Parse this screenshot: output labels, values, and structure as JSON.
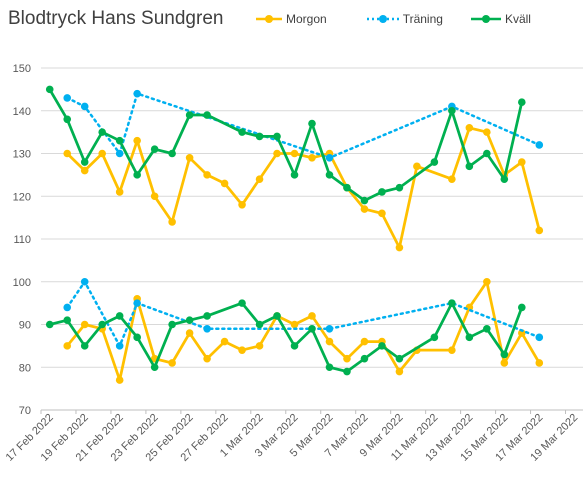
{
  "chart_data": {
    "type": "line",
    "title": "Blodtryck Hans Sundgren",
    "xlabel": "",
    "ylabel": "",
    "ylim": [
      70,
      150
    ],
    "yticks": [
      "70",
      "80",
      "90",
      "100",
      "110",
      "120",
      "130",
      "140",
      "150"
    ],
    "xticks": [
      "17 Feb 2022",
      "19 Feb 2022",
      "21 Feb 2022",
      "23 Feb 2022",
      "25 Feb 2022",
      "27 Feb 2022",
      "1 Mar 2022",
      "3 Mar 2022",
      "5 Mar 2022",
      "7 Mar 2022",
      "9 Mar 2022",
      "11 Mar 2022",
      "13 Mar 2022",
      "15 Mar 2022",
      "17 Mar 2022",
      "19 Mar 2022"
    ],
    "xrange": [
      "2022-02-17",
      "2022-03-20"
    ],
    "grid": "horizontal",
    "legend_position": "top",
    "series": [
      {
        "name": "Morgon",
        "style": "solid",
        "color": "#FFC000",
        "lines": [
          {
            "part": "systolic",
            "x": [
              "2022-02-18",
              "2022-02-19",
              "2022-02-20",
              "2022-02-21",
              "2022-02-22",
              "2022-02-23",
              "2022-02-24",
              "2022-02-25",
              "2022-02-26",
              "2022-02-27",
              "2022-02-28",
              "2022-03-01",
              "2022-03-02",
              "2022-03-03",
              "2022-03-04",
              "2022-03-05",
              "2022-03-06",
              "2022-03-07",
              "2022-03-08",
              "2022-03-09",
              "2022-03-10",
              "2022-03-12",
              "2022-03-13",
              "2022-03-14",
              "2022-03-15",
              "2022-03-16",
              "2022-03-17"
            ],
            "y": [
              130,
              126,
              130,
              121,
              133,
              120,
              114,
              129,
              125,
              123,
              118,
              124,
              130,
              130,
              129,
              130,
              122,
              117,
              116,
              108,
              127,
              124,
              136,
              135,
              125,
              128,
              112
            ]
          },
          {
            "part": "diastolic",
            "x": [
              "2022-02-18",
              "2022-02-19",
              "2022-02-20",
              "2022-02-21",
              "2022-02-22",
              "2022-02-23",
              "2022-02-24",
              "2022-02-25",
              "2022-02-26",
              "2022-02-27",
              "2022-02-28",
              "2022-03-01",
              "2022-03-02",
              "2022-03-03",
              "2022-03-04",
              "2022-03-05",
              "2022-03-06",
              "2022-03-07",
              "2022-03-08",
              "2022-03-09",
              "2022-03-10",
              "2022-03-12",
              "2022-03-13",
              "2022-03-14",
              "2022-03-15",
              "2022-03-16",
              "2022-03-17"
            ],
            "y": [
              85,
              90,
              89,
              77,
              96,
              82,
              81,
              88,
              82,
              86,
              84,
              85,
              92,
              90,
              92,
              86,
              82,
              86,
              86,
              79,
              84,
              84,
              94,
              100,
              81,
              88,
              81
            ]
          }
        ]
      },
      {
        "name": "Träning",
        "style": "dotted",
        "color": "#00B0F0",
        "lines": [
          {
            "part": "systolic",
            "x": [
              "2022-02-18",
              "2022-02-19",
              "2022-02-21",
              "2022-02-22",
              "2022-03-05",
              "2022-03-12",
              "2022-03-17"
            ],
            "y": [
              143,
              141,
              130,
              144,
              129,
              141,
              132
            ]
          },
          {
            "part": "diastolic",
            "x": [
              "2022-02-18",
              "2022-02-19",
              "2022-02-21",
              "2022-02-22",
              "2022-02-26",
              "2022-03-05",
              "2022-03-12",
              "2022-03-17"
            ],
            "y": [
              94,
              100,
              85,
              95,
              89,
              89,
              95,
              87
            ]
          }
        ]
      },
      {
        "name": "Kväll",
        "style": "solid",
        "color": "#00B050",
        "lines": [
          {
            "part": "systolic",
            "x": [
              "2022-02-17",
              "2022-02-18",
              "2022-02-19",
              "2022-02-20",
              "2022-02-21",
              "2022-02-22",
              "2022-02-23",
              "2022-02-24",
              "2022-02-25",
              "2022-02-26",
              "2022-02-28",
              "2022-03-01",
              "2022-03-02",
              "2022-03-03",
              "2022-03-04",
              "2022-03-05",
              "2022-03-06",
              "2022-03-07",
              "2022-03-08",
              "2022-03-09",
              "2022-03-11",
              "2022-03-12",
              "2022-03-13",
              "2022-03-14",
              "2022-03-15",
              "2022-03-16"
            ],
            "y": [
              145,
              138,
              128,
              135,
              133,
              125,
              131,
              130,
              139,
              139,
              135,
              134,
              134,
              125,
              137,
              125,
              122,
              119,
              121,
              122,
              128,
              140,
              127,
              130,
              124,
              142
            ]
          },
          {
            "part": "diastolic",
            "x": [
              "2022-02-17",
              "2022-02-18",
              "2022-02-19",
              "2022-02-20",
              "2022-02-21",
              "2022-02-22",
              "2022-02-23",
              "2022-02-24",
              "2022-02-25",
              "2022-02-26",
              "2022-02-28",
              "2022-03-01",
              "2022-03-02",
              "2022-03-03",
              "2022-03-04",
              "2022-03-05",
              "2022-03-06",
              "2022-03-07",
              "2022-03-08",
              "2022-03-09",
              "2022-03-11",
              "2022-03-12",
              "2022-03-13",
              "2022-03-14",
              "2022-03-15",
              "2022-03-16"
            ],
            "y": [
              90,
              91,
              85,
              90,
              92,
              87,
              80,
              90,
              91,
              92,
              95,
              90,
              92,
              85,
              89,
              80,
              79,
              82,
              85,
              82,
              87,
              95,
              87,
              89,
              83,
              94
            ]
          }
        ]
      }
    ]
  }
}
